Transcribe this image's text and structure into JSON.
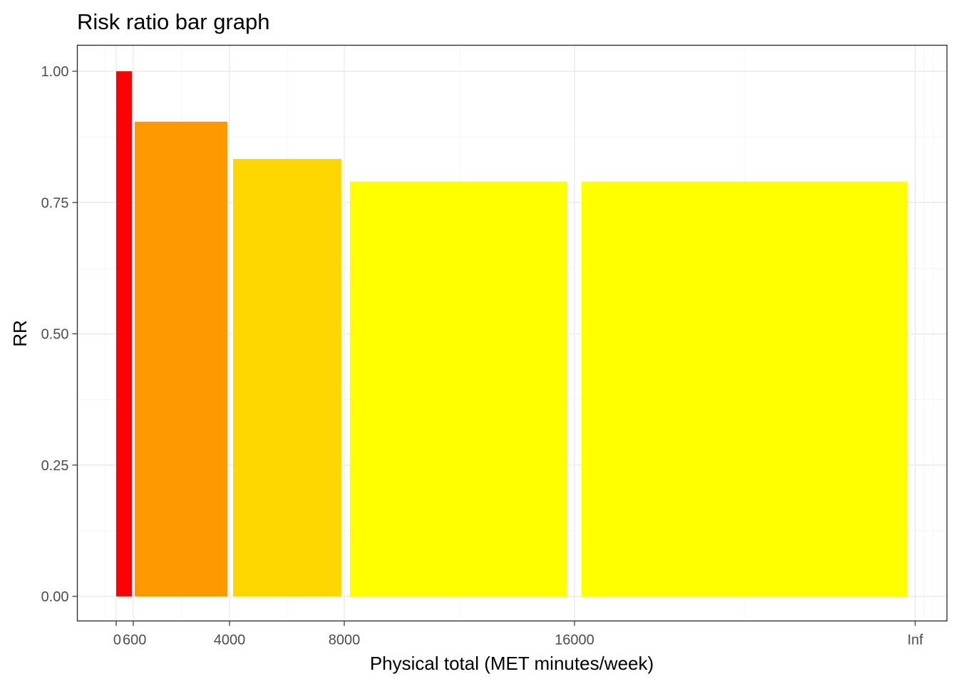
{
  "chart_data": {
    "type": "bar",
    "title": "Risk ratio bar graph",
    "xlabel": "Physical total (MET minutes/week)",
    "ylabel": "RR",
    "x_ticks": [
      {
        "label": "0",
        "pos": 0
      },
      {
        "label": "600",
        "pos": 1
      },
      {
        "label": "4000",
        "pos": 2
      },
      {
        "label": "8000",
        "pos": 3
      },
      {
        "label": "16000",
        "pos": 4
      },
      {
        "label": "Inf",
        "pos": 5
      }
    ],
    "y_ticks": [
      "0.00",
      "0.25",
      "0.50",
      "0.75",
      "1.00"
    ],
    "ylim": [
      0,
      1
    ],
    "bins": [
      {
        "from": "0",
        "to": "600",
        "value": 1.0,
        "color": "#ff0000"
      },
      {
        "from": "600",
        "to": "4000",
        "value": 0.904,
        "color": "#ff9900"
      },
      {
        "from": "4000",
        "to": "8000",
        "value": 0.833,
        "color": "#ffd700"
      },
      {
        "from": "8000",
        "to": "16000",
        "value": 0.79,
        "color": "#ffff00"
      },
      {
        "from": "16000",
        "to": "Inf",
        "value": 0.79,
        "color": "#ffff00"
      }
    ],
    "grid": true,
    "legend": "none"
  }
}
